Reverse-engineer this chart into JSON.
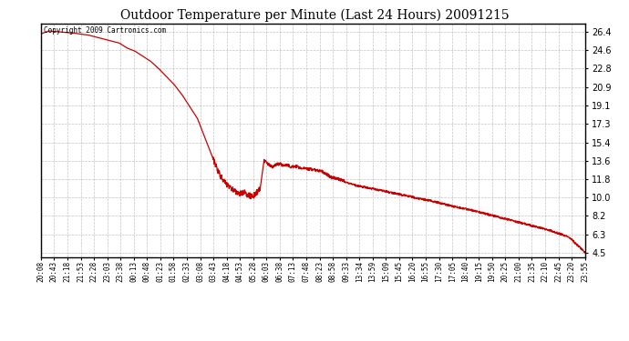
{
  "title": "Outdoor Temperature per Minute (Last 24 Hours) 20091215",
  "copyright_text": "Copyright 2009 Cartronics.com",
  "line_color": "#cc0000",
  "bg_color": "#ffffff",
  "plot_bg_color": "#ffffff",
  "grid_color": "#aaaaaa",
  "yticks": [
    4.5,
    6.3,
    8.2,
    10.0,
    11.8,
    13.6,
    15.4,
    17.3,
    19.1,
    20.9,
    22.8,
    24.6,
    26.4
  ],
  "ylim": [
    4.0,
    27.2
  ],
  "xtick_labels": [
    "20:08",
    "20:43",
    "21:18",
    "21:53",
    "22:28",
    "23:03",
    "23:38",
    "00:13",
    "00:48",
    "01:23",
    "01:58",
    "02:33",
    "03:08",
    "03:43",
    "04:18",
    "04:53",
    "05:28",
    "06:03",
    "06:38",
    "07:13",
    "07:48",
    "08:23",
    "08:58",
    "09:33",
    "13:34",
    "13:59",
    "15:09",
    "15:45",
    "16:20",
    "16:55",
    "17:30",
    "17:05",
    "18:40",
    "19:15",
    "19:50",
    "20:25",
    "21:00",
    "21:35",
    "22:10",
    "22:45",
    "23:20",
    "23:55"
  ],
  "control_points_x": [
    0,
    2,
    5,
    8,
    12,
    16,
    20,
    22,
    24,
    26,
    28,
    30,
    32,
    34,
    36,
    38,
    40,
    41,
    42,
    43,
    44,
    45,
    46,
    47,
    48,
    49,
    50,
    51,
    52,
    53,
    54,
    55,
    56,
    57,
    58,
    59,
    60,
    61,
    62,
    63,
    64,
    65,
    66,
    68,
    70,
    72,
    74,
    76,
    80,
    85,
    90,
    95,
    100,
    105,
    110,
    115,
    120,
    125,
    130,
    135,
    139
  ],
  "control_points_y": [
    26.2,
    26.5,
    26.4,
    26.3,
    26.1,
    25.7,
    25.3,
    24.8,
    24.5,
    24.0,
    23.5,
    22.8,
    22.0,
    21.2,
    20.2,
    19.0,
    17.8,
    16.8,
    15.8,
    14.8,
    13.8,
    12.8,
    12.0,
    11.5,
    11.1,
    10.8,
    10.5,
    10.3,
    10.5,
    10.2,
    10.05,
    10.4,
    10.8,
    13.6,
    13.3,
    13.0,
    13.2,
    13.3,
    13.1,
    13.2,
    13.0,
    13.1,
    12.9,
    12.8,
    12.7,
    12.5,
    12.0,
    11.8,
    11.2,
    10.8,
    10.4,
    10.0,
    9.6,
    9.1,
    8.7,
    8.2,
    7.7,
    7.2,
    6.7,
    6.0,
    4.5
  ]
}
